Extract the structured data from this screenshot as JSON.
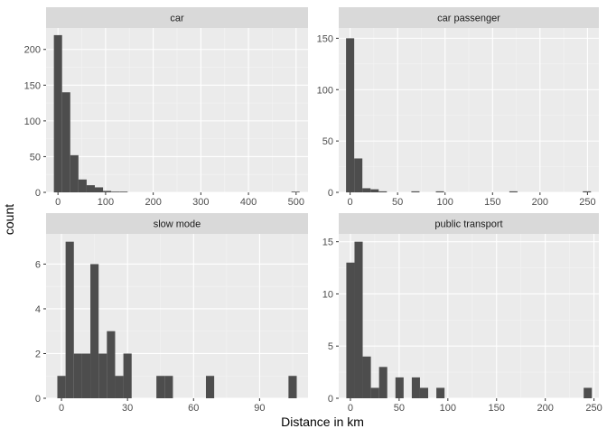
{
  "colors": {
    "panel_background": "#ebebeb",
    "strip_background": "#d9d9d9",
    "grid_major": "#ffffff",
    "grid_minor": "#f4f4f4",
    "bar_fill": "#4d4d4d",
    "tick_color": "#333333"
  },
  "axis": {
    "xlabel": "Distance in km",
    "ylabel": "count"
  },
  "chart_data": [
    {
      "type": "bar",
      "title": "car",
      "xlim": [
        -25,
        525
      ],
      "ylim": [
        0,
        230
      ],
      "x_ticks": [
        0,
        100,
        200,
        300,
        400,
        500
      ],
      "x_tick_labels": [
        "0",
        "100",
        "200",
        "300",
        "400",
        "500"
      ],
      "y_ticks": [
        0,
        50,
        100,
        150,
        200
      ],
      "y_tick_labels": [
        "0",
        "50",
        "100",
        "150",
        "200"
      ],
      "bin_width": 17.2,
      "x": [
        0,
        17.2,
        34.4,
        51.6,
        68.8,
        86.0,
        103.2,
        120.4,
        137.6,
        498.8
      ],
      "values": [
        220,
        140,
        52,
        18,
        10,
        7,
        2,
        1,
        1,
        1
      ]
    },
    {
      "type": "bar",
      "title": "car passenger",
      "xlim": [
        -12,
        262
      ],
      "ylim": [
        0,
        160
      ],
      "x_ticks": [
        0,
        50,
        100,
        150,
        200,
        250
      ],
      "x_tick_labels": [
        "0",
        "50",
        "100",
        "150",
        "200",
        "250"
      ],
      "y_ticks": [
        0,
        50,
        100,
        150
      ],
      "y_tick_labels": [
        "0",
        "50",
        "100",
        "150"
      ],
      "bin_width": 8.6,
      "x": [
        0,
        8.6,
        17.2,
        25.8,
        34.4,
        68.8,
        94.6,
        172.0,
        249.4
      ],
      "values": [
        150,
        33,
        4,
        3,
        1,
        1,
        1,
        1,
        1
      ]
    },
    {
      "type": "bar",
      "title": "slow mode",
      "xlim": [
        -7,
        112
      ],
      "ylim": [
        0,
        7.35
      ],
      "x_ticks": [
        0,
        30,
        60,
        90
      ],
      "x_tick_labels": [
        "0",
        "30",
        "60",
        "90"
      ],
      "y_ticks": [
        0,
        2,
        4,
        6
      ],
      "y_tick_labels": [
        "0",
        "2",
        "4",
        "6"
      ],
      "bin_width": 3.75,
      "x": [
        0,
        3.75,
        7.5,
        11.25,
        15,
        18.75,
        22.5,
        26.25,
        30,
        45,
        48.75,
        67.5,
        105
      ],
      "values": [
        1,
        7,
        2,
        2,
        6,
        2,
        3,
        1,
        2,
        1,
        1,
        1,
        1
      ]
    },
    {
      "type": "bar",
      "title": "public transport",
      "xlim": [
        -12,
        255
      ],
      "ylim": [
        0,
        15.75
      ],
      "x_ticks": [
        0,
        50,
        100,
        150,
        200,
        250
      ],
      "x_tick_labels": [
        "0",
        "50",
        "100",
        "150",
        "200",
        "250"
      ],
      "y_ticks": [
        0,
        5,
        10,
        15
      ],
      "y_tick_labels": [
        "0",
        "5",
        "10",
        "15"
      ],
      "bin_width": 8.4,
      "x": [
        0,
        8.4,
        16.8,
        25.2,
        33.6,
        50.4,
        67.2,
        75.6,
        92.4,
        243.6
      ],
      "values": [
        13,
        15,
        4,
        1,
        3,
        2,
        2,
        1,
        1,
        1
      ]
    }
  ]
}
